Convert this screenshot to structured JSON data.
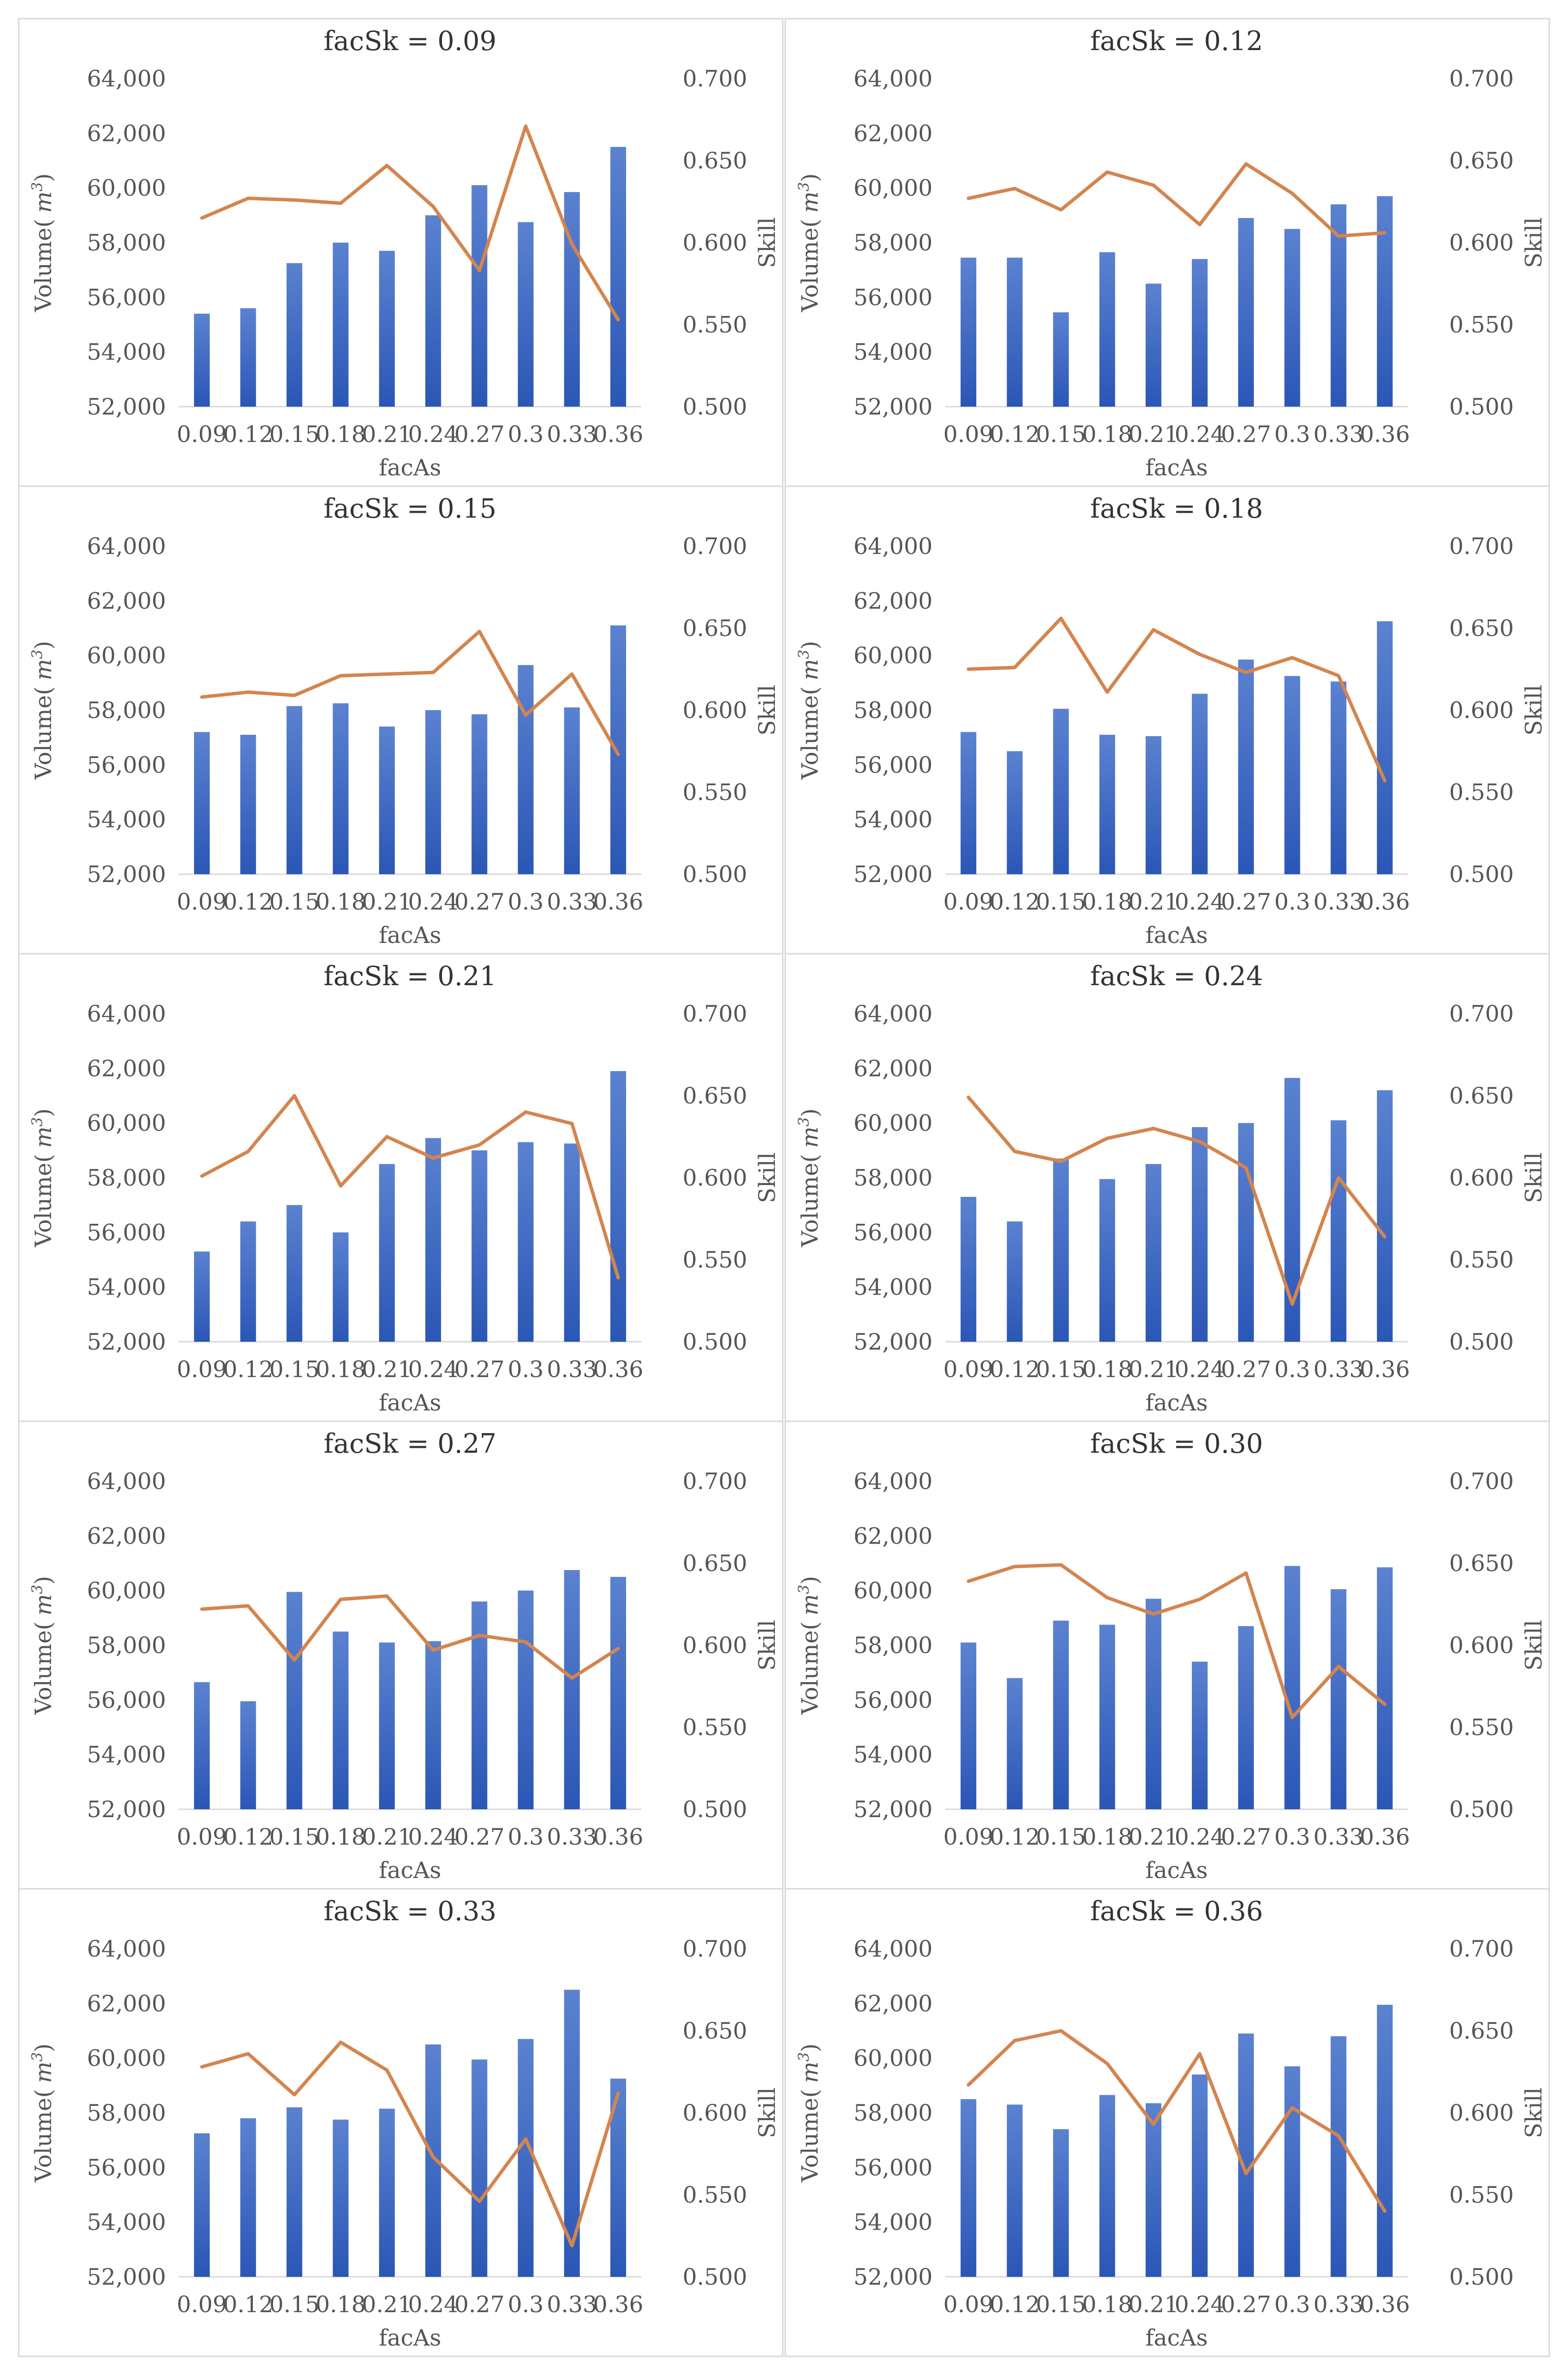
{
  "colors": {
    "bar_top": "#5b82d0",
    "bar_bottom": "#2a56b6",
    "line": "#d3854f",
    "text": "#555555",
    "title": "#333333",
    "border": "#d9d9d9"
  },
  "chart_data": [
    {
      "type": "bar+line",
      "title": "facSk = 0.09",
      "xlabel": "facAs",
      "ylabel": "Volume( m3)",
      "ylabel_main": "Volume(",
      "ylabel_unit": "m",
      "ylabel_sup": "3",
      "ylabel_close": ")",
      "y2label": "Skill",
      "categories": [
        "0.09",
        "0.12",
        "0.15",
        "0.18",
        "0.21",
        "0.24",
        "0.27",
        "0.3",
        "0.33",
        "0.36"
      ],
      "yticks": [
        "52,000",
        "54,000",
        "56,000",
        "58,000",
        "60,000",
        "62,000",
        "64,000"
      ],
      "y2ticks": [
        "0.500",
        "0.550",
        "0.600",
        "0.650",
        "0.700"
      ],
      "ylim": [
        52000,
        64000
      ],
      "y2lim": [
        0.5,
        0.7
      ],
      "series": [
        {
          "name": "Volume",
          "axis": "left",
          "values": [
            55400,
            55600,
            57250,
            58000,
            57700,
            59000,
            60100,
            58750,
            59850,
            61500
          ]
        },
        {
          "name": "Skill",
          "axis": "right",
          "values": [
            0.615,
            0.627,
            0.626,
            0.624,
            0.647,
            0.622,
            0.583,
            0.671,
            0.599,
            0.553
          ]
        }
      ]
    },
    {
      "type": "bar+line",
      "title": "facSk = 0.12",
      "xlabel": "facAs",
      "ylabel": "Volume( m3)",
      "ylabel_main": "Volume(",
      "ylabel_unit": "m",
      "ylabel_sup": "3",
      "ylabel_close": ")",
      "y2label": "Skill",
      "categories": [
        "0.09",
        "0.12",
        "0.15",
        "0.18",
        "0.21",
        "0.24",
        "0.27",
        "0.3",
        "0.33",
        "0.36"
      ],
      "yticks": [
        "52,000",
        "54,000",
        "56,000",
        "58,000",
        "60,000",
        "62,000",
        "64,000"
      ],
      "y2ticks": [
        "0.500",
        "0.550",
        "0.600",
        "0.650",
        "0.700"
      ],
      "ylim": [
        52000,
        64000
      ],
      "y2lim": [
        0.5,
        0.7
      ],
      "series": [
        {
          "name": "Volume",
          "axis": "left",
          "values": [
            57450,
            57450,
            55450,
            57650,
            56500,
            57400,
            58900,
            58500,
            59400,
            59700
          ]
        },
        {
          "name": "Skill",
          "axis": "right",
          "values": [
            0.627,
            0.633,
            0.62,
            0.643,
            0.635,
            0.611,
            0.648,
            0.63,
            0.604,
            0.606
          ]
        }
      ]
    },
    {
      "type": "bar+line",
      "title": "facSk = 0.15",
      "xlabel": "facAs",
      "ylabel": "Volume( m3)",
      "ylabel_main": "Volume(",
      "ylabel_unit": "m",
      "ylabel_sup": "3",
      "ylabel_close": ")",
      "y2label": "Skill",
      "categories": [
        "0.09",
        "0.12",
        "0.15",
        "0.18",
        "0.21",
        "0.24",
        "0.27",
        "0.3",
        "0.33",
        "0.36"
      ],
      "yticks": [
        "52,000",
        "54,000",
        "56,000",
        "58,000",
        "60,000",
        "62,000",
        "64,000"
      ],
      "y2ticks": [
        "0.500",
        "0.550",
        "0.600",
        "0.650",
        "0.700"
      ],
      "ylim": [
        52000,
        64000
      ],
      "y2lim": [
        0.5,
        0.7
      ],
      "series": [
        {
          "name": "Volume",
          "axis": "left",
          "values": [
            57200,
            57100,
            58150,
            58250,
            57400,
            58000,
            57850,
            59650,
            58100,
            61100
          ]
        },
        {
          "name": "Skill",
          "axis": "right",
          "values": [
            0.608,
            0.611,
            0.609,
            0.621,
            0.622,
            0.623,
            0.648,
            0.597,
            0.622,
            0.573
          ]
        }
      ]
    },
    {
      "type": "bar+line",
      "title": "facSk = 0.18",
      "xlabel": "facAs",
      "ylabel": "Volume( m3)",
      "ylabel_main": "Volume(",
      "ylabel_unit": "m",
      "ylabel_sup": "3",
      "ylabel_close": ")",
      "y2label": "Skill",
      "categories": [
        "0.09",
        "0.12",
        "0.15",
        "0.18",
        "0.21",
        "0.24",
        "0.27",
        "0.3",
        "0.33",
        "0.36"
      ],
      "yticks": [
        "52,000",
        "54,000",
        "56,000",
        "58,000",
        "60,000",
        "62,000",
        "64,000"
      ],
      "y2ticks": [
        "0.500",
        "0.550",
        "0.600",
        "0.650",
        "0.700"
      ],
      "ylim": [
        52000,
        64000
      ],
      "y2lim": [
        0.5,
        0.7
      ],
      "series": [
        {
          "name": "Volume",
          "axis": "left",
          "values": [
            57200,
            56500,
            58050,
            57100,
            57050,
            58600,
            59850,
            59250,
            59050,
            61250
          ]
        },
        {
          "name": "Skill",
          "axis": "right",
          "values": [
            0.625,
            0.626,
            0.656,
            0.611,
            0.649,
            0.634,
            0.623,
            0.632,
            0.621,
            0.557
          ]
        }
      ]
    },
    {
      "type": "bar+line",
      "title": "facSk = 0.21",
      "xlabel": "facAs",
      "ylabel": "Volume( m3)",
      "ylabel_main": "Volume(",
      "ylabel_unit": "m",
      "ylabel_sup": "3",
      "ylabel_close": ")",
      "y2label": "Skill",
      "categories": [
        "0.09",
        "0.12",
        "0.15",
        "0.18",
        "0.21",
        "0.24",
        "0.27",
        "0.3",
        "0.33",
        "0.36"
      ],
      "yticks": [
        "52,000",
        "54,000",
        "56,000",
        "58,000",
        "60,000",
        "62,000",
        "64,000"
      ],
      "y2ticks": [
        "0.500",
        "0.550",
        "0.600",
        "0.650",
        "0.700"
      ],
      "ylim": [
        52000,
        64000
      ],
      "y2lim": [
        0.5,
        0.7
      ],
      "series": [
        {
          "name": "Volume",
          "axis": "left",
          "values": [
            55300,
            56400,
            57000,
            56000,
            58500,
            59450,
            59000,
            59300,
            59250,
            61900
          ]
        },
        {
          "name": "Skill",
          "axis": "right",
          "values": [
            0.601,
            0.616,
            0.65,
            0.595,
            0.625,
            0.612,
            0.62,
            0.64,
            0.633,
            0.539
          ]
        }
      ]
    },
    {
      "type": "bar+line",
      "title": "facSk = 0.24",
      "xlabel": "facAs",
      "ylabel": "Volume( m3)",
      "ylabel_main": "Volume(",
      "ylabel_unit": "m",
      "ylabel_sup": "3",
      "ylabel_close": ")",
      "y2label": "Skill",
      "categories": [
        "0.09",
        "0.12",
        "0.15",
        "0.18",
        "0.21",
        "0.24",
        "0.27",
        "0.3",
        "0.33",
        "0.36"
      ],
      "yticks": [
        "52,000",
        "54,000",
        "56,000",
        "58,000",
        "60,000",
        "62,000",
        "64,000"
      ],
      "y2ticks": [
        "0.500",
        "0.550",
        "0.600",
        "0.650",
        "0.700"
      ],
      "ylim": [
        52000,
        64000
      ],
      "y2lim": [
        0.5,
        0.7
      ],
      "series": [
        {
          "name": "Volume",
          "axis": "left",
          "values": [
            57300,
            56400,
            58700,
            57950,
            58500,
            59850,
            60000,
            61650,
            60100,
            61200
          ]
        },
        {
          "name": "Skill",
          "axis": "right",
          "values": [
            0.649,
            0.616,
            0.61,
            0.624,
            0.63,
            0.622,
            0.606,
            0.523,
            0.6,
            0.564
          ]
        }
      ]
    },
    {
      "type": "bar+line",
      "title": "facSk = 0.27",
      "xlabel": "facAs",
      "ylabel": "Volume( m3)",
      "ylabel_main": "Volume(",
      "ylabel_unit": "m",
      "ylabel_sup": "3",
      "ylabel_close": ")",
      "y2label": "Skill",
      "categories": [
        "0.09",
        "0.12",
        "0.15",
        "0.18",
        "0.21",
        "0.24",
        "0.27",
        "0.3",
        "0.33",
        "0.36"
      ],
      "yticks": [
        "52,000",
        "54,000",
        "56,000",
        "58,000",
        "60,000",
        "62,000",
        "64,000"
      ],
      "y2ticks": [
        "0.500",
        "0.550",
        "0.600",
        "0.650",
        "0.700"
      ],
      "ylim": [
        52000,
        64000
      ],
      "y2lim": [
        0.5,
        0.7
      ],
      "series": [
        {
          "name": "Volume",
          "axis": "left",
          "values": [
            56650,
            55950,
            59950,
            58500,
            58100,
            58150,
            59600,
            60000,
            60750,
            60500
          ]
        },
        {
          "name": "Skill",
          "axis": "right",
          "values": [
            0.622,
            0.624,
            0.591,
            0.628,
            0.63,
            0.597,
            0.606,
            0.602,
            0.58,
            0.598
          ]
        }
      ]
    },
    {
      "type": "bar+line",
      "title": "facSk = 0.30",
      "xlabel": "facAs",
      "ylabel": "Volume( m3)",
      "ylabel_main": "Volume(",
      "ylabel_unit": "m",
      "ylabel_sup": "3",
      "ylabel_close": ")",
      "y2label": "Skill",
      "categories": [
        "0.09",
        "0.12",
        "0.15",
        "0.18",
        "0.21",
        "0.24",
        "0.27",
        "0.3",
        "0.33",
        "0.36"
      ],
      "yticks": [
        "52,000",
        "54,000",
        "56,000",
        "58,000",
        "60,000",
        "62,000",
        "64,000"
      ],
      "y2ticks": [
        "0.500",
        "0.550",
        "0.600",
        "0.650",
        "0.700"
      ],
      "ylim": [
        52000,
        64000
      ],
      "y2lim": [
        0.5,
        0.7
      ],
      "series": [
        {
          "name": "Volume",
          "axis": "left",
          "values": [
            58100,
            56800,
            58900,
            58750,
            59700,
            57400,
            58700,
            60900,
            60050,
            60850
          ]
        },
        {
          "name": "Skill",
          "axis": "right",
          "values": [
            0.639,
            0.648,
            0.649,
            0.629,
            0.619,
            0.628,
            0.644,
            0.556,
            0.587,
            0.564
          ]
        }
      ]
    },
    {
      "type": "bar+line",
      "title": "facSk = 0.33",
      "xlabel": "facAs",
      "ylabel": "Volume( m3)",
      "ylabel_main": "Volume(",
      "ylabel_unit": "m",
      "ylabel_sup": "3",
      "ylabel_close": ")",
      "y2label": "Skill",
      "categories": [
        "0.09",
        "0.12",
        "0.15",
        "0.18",
        "0.21",
        "0.24",
        "0.27",
        "0.3",
        "0.33",
        "0.36"
      ],
      "yticks": [
        "52,000",
        "54,000",
        "56,000",
        "58,000",
        "60,000",
        "62,000",
        "64,000"
      ],
      "y2ticks": [
        "0.500",
        "0.550",
        "0.600",
        "0.650",
        "0.700"
      ],
      "ylim": [
        52000,
        64000
      ],
      "y2lim": [
        0.5,
        0.7
      ],
      "series": [
        {
          "name": "Volume",
          "axis": "left",
          "values": [
            57250,
            57800,
            58200,
            57750,
            58150,
            60500,
            59950,
            60700,
            62500,
            59250
          ]
        },
        {
          "name": "Skill",
          "axis": "right",
          "values": [
            0.628,
            0.636,
            0.611,
            0.643,
            0.626,
            0.573,
            0.546,
            0.584,
            0.519,
            0.612
          ]
        }
      ]
    },
    {
      "type": "bar+line",
      "title": "facSk = 0.36",
      "xlabel": "facAs",
      "ylabel": "Volume( m3)",
      "ylabel_main": "Volume(",
      "ylabel_unit": "m",
      "ylabel_sup": "3",
      "ylabel_close": ")",
      "y2label": "Skill",
      "categories": [
        "0.09",
        "0.12",
        "0.15",
        "0.18",
        "0.21",
        "0.24",
        "0.27",
        "0.3",
        "0.33",
        "0.36"
      ],
      "yticks": [
        "52,000",
        "54,000",
        "56,000",
        "58,000",
        "60,000",
        "62,000",
        "64,000"
      ],
      "y2ticks": [
        "0.500",
        "0.550",
        "0.600",
        "0.650",
        "0.700"
      ],
      "ylim": [
        52000,
        64000
      ],
      "y2lim": [
        0.5,
        0.7
      ],
      "series": [
        {
          "name": "Volume",
          "axis": "left",
          "values": [
            58500,
            58300,
            57400,
            58650,
            58350,
            59400,
            60900,
            59700,
            60800,
            61950
          ]
        },
        {
          "name": "Skill",
          "axis": "right",
          "values": [
            0.617,
            0.644,
            0.65,
            0.63,
            0.593,
            0.636,
            0.563,
            0.603,
            0.586,
            0.54
          ]
        }
      ]
    }
  ]
}
